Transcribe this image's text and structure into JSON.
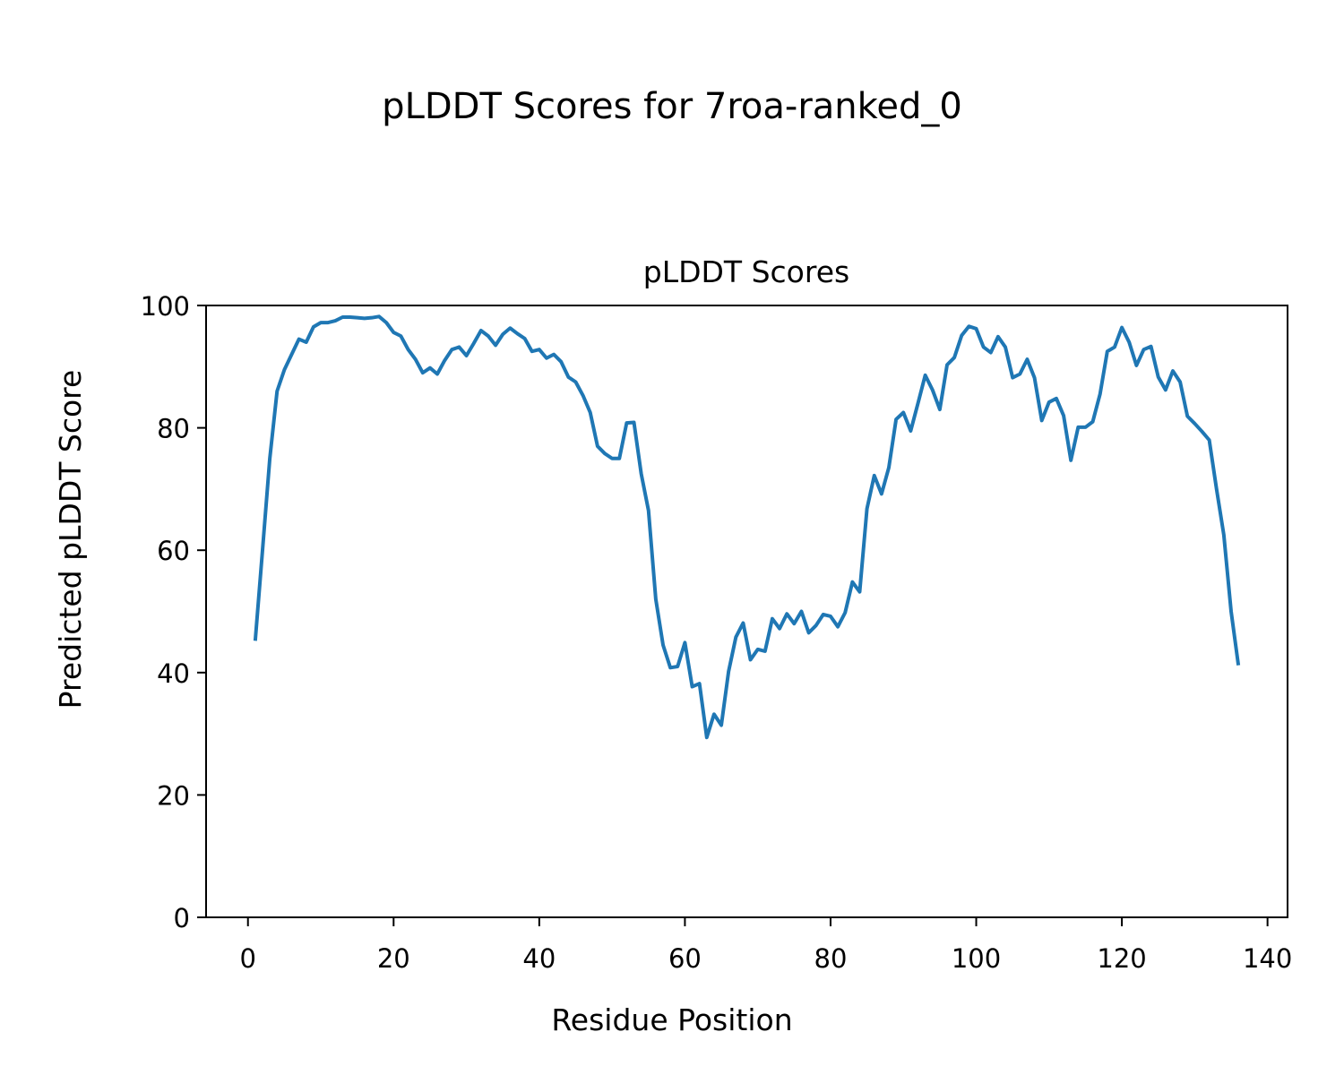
{
  "chart_data": {
    "type": "line",
    "suptitle": "pLDDT Scores for 7roa-ranked_0",
    "title": "pLDDT Scores",
    "xlabel": "Residue Position",
    "ylabel": "Predicted pLDDT Score",
    "x": [
      1,
      2,
      3,
      4,
      5,
      6,
      7,
      8,
      9,
      10,
      11,
      12,
      13,
      14,
      15,
      16,
      17,
      18,
      19,
      20,
      21,
      22,
      23,
      24,
      25,
      26,
      27,
      28,
      29,
      30,
      31,
      32,
      33,
      34,
      35,
      36,
      37,
      38,
      39,
      40,
      41,
      42,
      43,
      44,
      45,
      46,
      47,
      48,
      49,
      50,
      51,
      52,
      53,
      54,
      55,
      56,
      57,
      58,
      59,
      60,
      61,
      62,
      63,
      64,
      65,
      66,
      67,
      68,
      69,
      70,
      71,
      72,
      73,
      74,
      75,
      76,
      77,
      78,
      79,
      80,
      81,
      82,
      83,
      84,
      85,
      86,
      87,
      88,
      89,
      90,
      91,
      92,
      93,
      94,
      95,
      96,
      97,
      98,
      99,
      100,
      101,
      102,
      103,
      104,
      105,
      106,
      107,
      108,
      109,
      110,
      111,
      112,
      113,
      114,
      115,
      116,
      117,
      118,
      119,
      120,
      121,
      122,
      123,
      124,
      125,
      126,
      127,
      128,
      129,
      130,
      131,
      132,
      133,
      134,
      135,
      136
    ],
    "series": [
      {
        "color": "#1f77b4",
        "values": [
          45.2,
          60,
          75,
          86,
          89.5,
          92,
          94.5,
          94,
          96.5,
          97.2,
          97.2,
          97.5,
          98.1,
          98.1,
          98,
          97.9,
          98,
          98.2,
          97.2,
          95.6,
          95,
          92.8,
          91.2,
          89,
          89.8,
          88.8,
          91,
          92.8,
          93.2,
          91.8,
          93.8,
          95.9,
          95,
          93.5,
          95.3,
          96.3,
          95.4,
          94.6,
          92.5,
          92.8,
          91.4,
          92,
          90.8,
          88.3,
          87.5,
          85.3,
          82.5,
          77,
          75.8,
          75,
          75,
          80.8,
          80.9,
          72.5,
          66.5,
          52,
          44.5,
          40.8,
          41,
          44.9,
          37.7,
          38.2,
          29.4,
          33.2,
          31.4,
          40.2,
          45.8,
          48.1,
          42.1,
          43.8,
          43.5,
          48.8,
          47.2,
          49.6,
          48,
          50,
          46.5,
          47.7,
          49.5,
          49.2,
          47.5,
          49.8,
          54.8,
          53.2,
          66.8,
          72.2,
          69.2,
          73.5,
          81.4,
          82.5,
          79.5,
          84,
          88.6,
          86.2,
          83,
          90.3,
          91.5,
          95.1,
          96.6,
          96.2,
          93.2,
          92.3,
          94.9,
          93.2,
          88.2,
          88.8,
          91.2,
          88.2,
          81.2,
          84.2,
          84.8,
          82,
          74.7,
          80.1,
          80.1,
          81,
          85.5,
          92.5,
          93.2,
          96.4,
          94,
          90.2,
          92.8,
          93.3,
          88.3,
          86.2,
          89.3,
          87.5,
          81.9,
          80.7,
          79.4,
          78,
          70,
          62.5,
          50,
          41.2
        ]
      }
    ],
    "xlim": [
      -5.75,
      142.75
    ],
    "xticks": [
      0,
      20,
      40,
      60,
      80,
      100,
      120,
      140
    ],
    "ylim": [
      0,
      100
    ],
    "yticks": [
      0,
      20,
      40,
      60,
      80,
      100
    ]
  }
}
